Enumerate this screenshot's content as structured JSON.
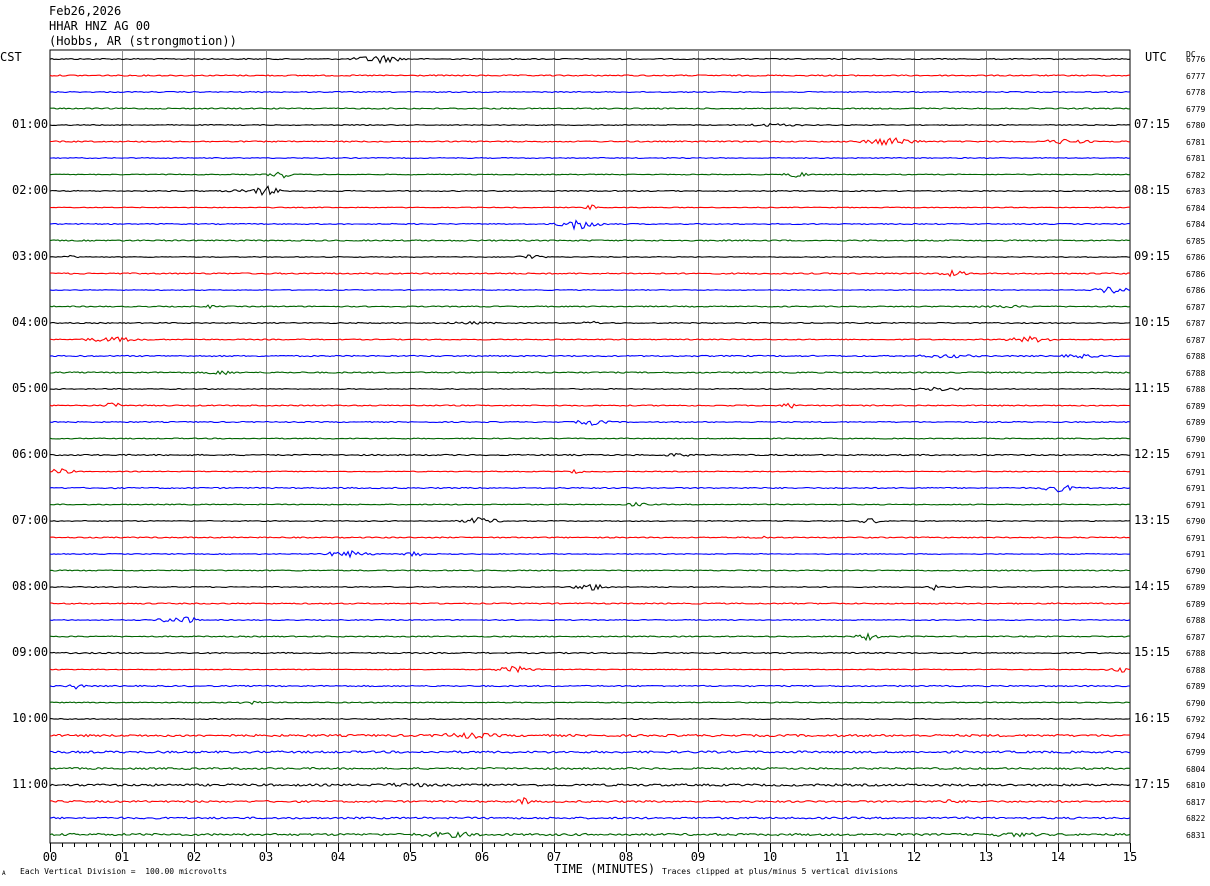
{
  "header": {
    "date": "Feb26,2026",
    "station": "HHAR HNZ AG 00",
    "location": "(Hobbs, AR (strongmotion))"
  },
  "left_tz": "CST",
  "right_tz": "UTC",
  "dc_label": "DC",
  "footer": {
    "scale": "Each Vertical Division =  100.00 microvolts",
    "clip": "Traces clipped at plus/minus 5 vertical divisions",
    "corner_mark": "A"
  },
  "chart_data": {
    "type": "line",
    "xlabel": "TIME (MINUTES)",
    "xlim": [
      0,
      15
    ],
    "x_ticks": [
      "00",
      "01",
      "02",
      "03",
      "04",
      "05",
      "06",
      "07",
      "08",
      "09",
      "10",
      "11",
      "12",
      "13",
      "14",
      "15"
    ],
    "row_count": 48,
    "trace_colors": [
      "#000000",
      "#ff0000",
      "#0000ff",
      "#006400"
    ],
    "left_hour_labels": [
      "01:00",
      "02:00",
      "03:00",
      "04:00",
      "05:00",
      "06:00",
      "07:00",
      "08:00",
      "09:00",
      "10:00",
      "11:00"
    ],
    "right_hour_labels": [
      "07:15",
      "08:15",
      "09:15",
      "10:15",
      "11:15",
      "12:15",
      "13:15",
      "14:15",
      "15:15",
      "16:15",
      "17:15"
    ],
    "hour_label_rows": [
      4,
      8,
      12,
      16,
      20,
      24,
      28,
      32,
      36,
      40,
      44
    ],
    "dc_values": [
      "6776",
      "6777",
      "6778",
      "6779",
      "6780",
      "6781",
      "6781",
      "6782",
      "6783",
      "6784",
      "6784",
      "6785",
      "6786",
      "6786",
      "6786",
      "6787",
      "6787",
      "6787",
      "6788",
      "6788",
      "6788",
      "6789",
      "6789",
      "6790",
      "6791",
      "6791",
      "6791",
      "6791",
      "6790",
      "6791",
      "6791",
      "6790",
      "6789",
      "6789",
      "6788",
      "6787",
      "6788",
      "6788",
      "6789",
      "6790",
      "6792",
      "6794",
      "6799",
      "6804",
      "6810",
      "6817",
      "6822",
      "6831"
    ]
  }
}
